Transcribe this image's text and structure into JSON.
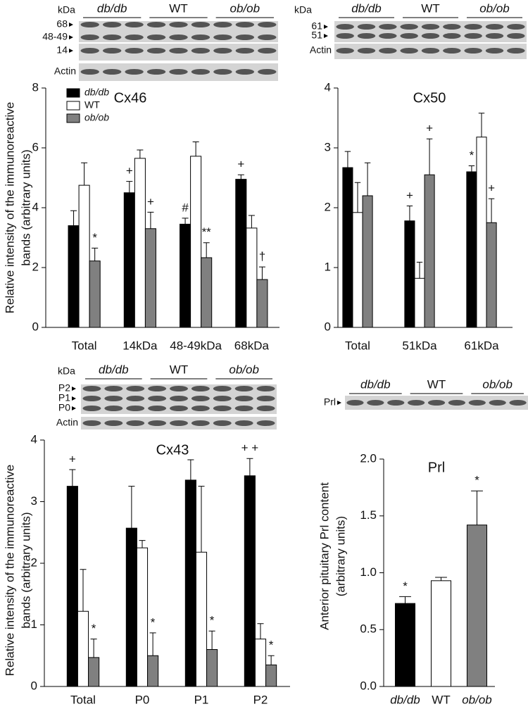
{
  "chart_data": [
    {
      "type": "bar",
      "title": "Cx46",
      "ylabel": [
        "Relative intensity of the immunoreactive",
        "bands (arbitrary units)"
      ],
      "categories": [
        "Total",
        "14kDa",
        "48-49kDa",
        "68kDa"
      ],
      "series": [
        {
          "name": "db/db",
          "color": "#000000",
          "values": [
            3.4,
            4.5,
            3.45,
            4.95
          ],
          "errors": [
            0.5,
            0.38,
            0.2,
            0.15
          ],
          "annotations": [
            null,
            "+",
            "#",
            "+"
          ]
        },
        {
          "name": "WT",
          "color": "#ffffff",
          "values": [
            4.75,
            5.65,
            5.72,
            3.32
          ],
          "errors": [
            0.75,
            0.28,
            0.48,
            0.42
          ],
          "annotations": [
            null,
            null,
            null,
            null
          ]
        },
        {
          "name": "ob/ob",
          "color": "#808080",
          "values": [
            2.22,
            3.3,
            2.33,
            1.6
          ],
          "errors": [
            0.43,
            0.55,
            0.5,
            0.42
          ],
          "annotations": [
            "*",
            "+",
            "**",
            "†"
          ]
        }
      ],
      "ylim": [
        0,
        8
      ],
      "yticks": [
        0,
        2,
        4,
        6,
        8
      ],
      "legend": true,
      "blot": {
        "unit": "kDa",
        "groups": [
          "db/db",
          "WT",
          "ob/ob"
        ],
        "bands": [
          "68",
          "48-49",
          "14"
        ],
        "loading": "Actin"
      }
    },
    {
      "type": "bar",
      "title": "Cx50",
      "categories": [
        "Total",
        "51kDa",
        "61kDa"
      ],
      "series": [
        {
          "name": "db/db",
          "color": "#000000",
          "values": [
            2.67,
            1.78,
            2.6
          ],
          "errors": [
            0.27,
            0.25,
            0.1
          ],
          "annotations": [
            null,
            "+",
            "*"
          ]
        },
        {
          "name": "WT",
          "color": "#ffffff",
          "values": [
            1.92,
            0.82,
            3.18
          ],
          "errors": [
            0.5,
            0.27,
            0.4
          ],
          "annotations": [
            null,
            null,
            null
          ]
        },
        {
          "name": "ob/ob",
          "color": "#808080",
          "values": [
            2.2,
            2.55,
            1.75
          ],
          "errors": [
            0.55,
            0.6,
            0.4
          ],
          "annotations": [
            null,
            "+",
            "+"
          ]
        }
      ],
      "ylim": [
        0,
        4
      ],
      "yticks": [
        0,
        1,
        2,
        3,
        4
      ],
      "legend": false,
      "blot": {
        "unit": "kDa",
        "groups": [
          "db/db",
          "WT",
          "ob/ob"
        ],
        "bands": [
          "61",
          "51"
        ],
        "loading": "Actin"
      }
    },
    {
      "type": "bar",
      "title": "Cx43",
      "ylabel": [
        "Relative intensity of the immunoreactive",
        "bands (arbitrary units)"
      ],
      "categories": [
        "Total",
        "P0",
        "P1",
        "P2"
      ],
      "series": [
        {
          "name": "db/db",
          "color": "#000000",
          "values": [
            3.25,
            2.57,
            3.35,
            3.42
          ],
          "errors": [
            0.27,
            0.68,
            0.33,
            0.28
          ],
          "annotations": [
            "+",
            null,
            null,
            "+ +"
          ]
        },
        {
          "name": "WT",
          "color": "#ffffff",
          "values": [
            1.22,
            2.25,
            2.18,
            0.77
          ],
          "errors": [
            0.68,
            0.12,
            1.07,
            0.25
          ],
          "annotations": [
            null,
            null,
            null,
            null
          ]
        },
        {
          "name": "ob/ob",
          "color": "#808080",
          "values": [
            0.47,
            0.5,
            0.6,
            0.35
          ],
          "errors": [
            0.3,
            0.37,
            0.3,
            0.15
          ],
          "annotations": [
            "*",
            "*",
            "*",
            "*"
          ]
        }
      ],
      "ylim": [
        0,
        4
      ],
      "yticks": [
        0,
        1,
        2,
        3,
        4
      ],
      "legend": false,
      "blot": {
        "unit": "kDa",
        "groups": [
          "db/db",
          "WT",
          "ob/ob"
        ],
        "bands": [
          "P2",
          "P1",
          "P0"
        ],
        "loading": "Actin"
      }
    },
    {
      "type": "bar",
      "title": "Prl",
      "ylabel": [
        "Anterior pituitary Prl content",
        "(arbitrary units)"
      ],
      "categories": [
        "db/db",
        "WT",
        "ob/ob"
      ],
      "values": [
        0.73,
        0.93,
        1.42
      ],
      "errors": [
        0.06,
        0.03,
        0.3
      ],
      "annotations": [
        "*",
        null,
        "*"
      ],
      "colors": [
        "#000000",
        "#ffffff",
        "#808080"
      ],
      "ylim": [
        0,
        2
      ],
      "yticks": [
        {
          "value": 0,
          "label": "0.0"
        },
        {
          "value": 0.5,
          "label": "0.5"
        },
        {
          "value": 1,
          "label": "1.0"
        },
        {
          "value": 1.5,
          "label": "1.5"
        },
        {
          "value": 2,
          "label": "2.0"
        }
      ],
      "legend": false,
      "blot": {
        "groups": [
          "db/db",
          "WT",
          "ob/ob"
        ],
        "bands": [
          "Prl"
        ]
      }
    }
  ]
}
